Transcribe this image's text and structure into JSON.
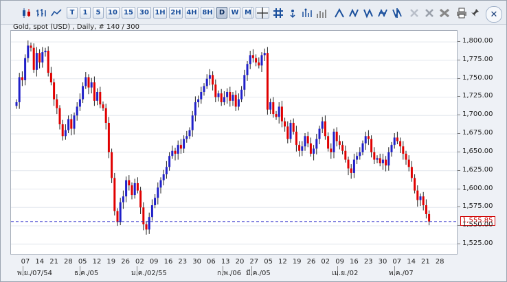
{
  "toolbar": {
    "buttons": [
      {
        "name": "chart-type-candle",
        "label": "",
        "icon": "candlestick-icon"
      },
      {
        "name": "chart-type-ohlc",
        "label": "",
        "icon": "bar-chart-icon"
      },
      {
        "name": "chart-type-line",
        "label": "",
        "icon": "line-chart-icon"
      },
      {
        "name": "period-tick",
        "label": "T"
      },
      {
        "name": "period-1m",
        "label": "1"
      },
      {
        "name": "period-5m",
        "label": "5"
      },
      {
        "name": "period-10m",
        "label": "10"
      },
      {
        "name": "period-15m",
        "label": "15"
      },
      {
        "name": "period-30m",
        "label": "30"
      },
      {
        "name": "period-1h",
        "label": "1H"
      },
      {
        "name": "period-2h",
        "label": "2H"
      },
      {
        "name": "period-4h",
        "label": "4H"
      },
      {
        "name": "period-8h",
        "label": "8H"
      },
      {
        "name": "period-daily",
        "label": "D",
        "selected": true
      },
      {
        "name": "period-weekly",
        "label": "W"
      },
      {
        "name": "period-monthly",
        "label": "M"
      }
    ],
    "tools": [
      "crosshair-icon",
      "grid-icon",
      "info-icon",
      "indicators-icon",
      "volume-icon",
      "trend-tool-1-icon",
      "trend-tool-2-icon",
      "trend-tool-3-icon",
      "trend-tool-4-icon",
      "trend-tool-5-icon",
      "eraser-icon",
      "delete-icon",
      "delete-all-icon",
      "print-icon",
      "pin-icon"
    ],
    "close_label": "✕"
  },
  "chart_title": "Gold, spot (USD) , Daily, # 140 / 300",
  "current_price": "1,555.85",
  "colors": {
    "up": "#2020c8",
    "down": "#e00000",
    "price_line": "#2020c8"
  },
  "chart_data": {
    "type": "candlestick",
    "ylim": [
      1510,
      1815
    ],
    "y_ticks": [
      "1,800.00",
      "1,775.00",
      "1,750.00",
      "1,725.00",
      "1,700.00",
      "1,675.00",
      "1,650.00",
      "1,625.00",
      "1,600.00",
      "1,575.00",
      "1,550.00",
      "1,525.00"
    ],
    "y_tick_values": [
      1800,
      1775,
      1750,
      1725,
      1700,
      1675,
      1650,
      1625,
      1600,
      1575,
      1550,
      1525
    ],
    "x_day_labels": [
      "07",
      "14",
      "21",
      "28",
      "05",
      "12",
      "19",
      "26",
      "02",
      "09",
      "16",
      "23",
      "30",
      "06",
      "13",
      "20",
      "27",
      "05",
      "12",
      "19",
      "26",
      "02",
      "09",
      "16",
      "23",
      "30",
      "07",
      "14",
      "21",
      "28"
    ],
    "x_month_labels": [
      "พ.ย./07/54",
      "ธ.ค./05",
      "ม.ค./02/55",
      "ก.พ./06",
      "มี.ค./05",
      "เม.ย./02",
      "พ.ค./07"
    ],
    "closes": [
      1718,
      1752,
      1748,
      1778,
      1795,
      1792,
      1762,
      1785,
      1772,
      1786,
      1788,
      1758,
      1745,
      1722,
      1710,
      1688,
      1672,
      1680,
      1695,
      1682,
      1700,
      1712,
      1722,
      1740,
      1752,
      1738,
      1745,
      1720,
      1732,
      1715,
      1710,
      1690,
      1650,
      1615,
      1570,
      1555,
      1582,
      1590,
      1612,
      1605,
      1592,
      1608,
      1598,
      1575,
      1552,
      1545,
      1562,
      1578,
      1588,
      1602,
      1612,
      1620,
      1630,
      1645,
      1652,
      1648,
      1660,
      1655,
      1668,
      1672,
      1680,
      1700,
      1718,
      1722,
      1732,
      1740,
      1750,
      1755,
      1742,
      1725,
      1730,
      1718,
      1725,
      1732,
      1720,
      1728,
      1712,
      1722,
      1735,
      1755,
      1770,
      1782,
      1778,
      1772,
      1768,
      1782,
      1785,
      1708,
      1718,
      1702,
      1698,
      1712,
      1692,
      1685,
      1668,
      1690,
      1678,
      1660,
      1652,
      1658,
      1672,
      1662,
      1648,
      1655,
      1668,
      1682,
      1692,
      1672,
      1655,
      1650,
      1678,
      1665,
      1660,
      1652,
      1640,
      1628,
      1622,
      1640,
      1645,
      1650,
      1662,
      1672,
      1668,
      1650,
      1640,
      1642,
      1635,
      1640,
      1632,
      1650,
      1660,
      1670,
      1665,
      1658,
      1648,
      1640,
      1630,
      1615,
      1598,
      1585,
      1590,
      1578,
      1566,
      1555.85
    ]
  }
}
